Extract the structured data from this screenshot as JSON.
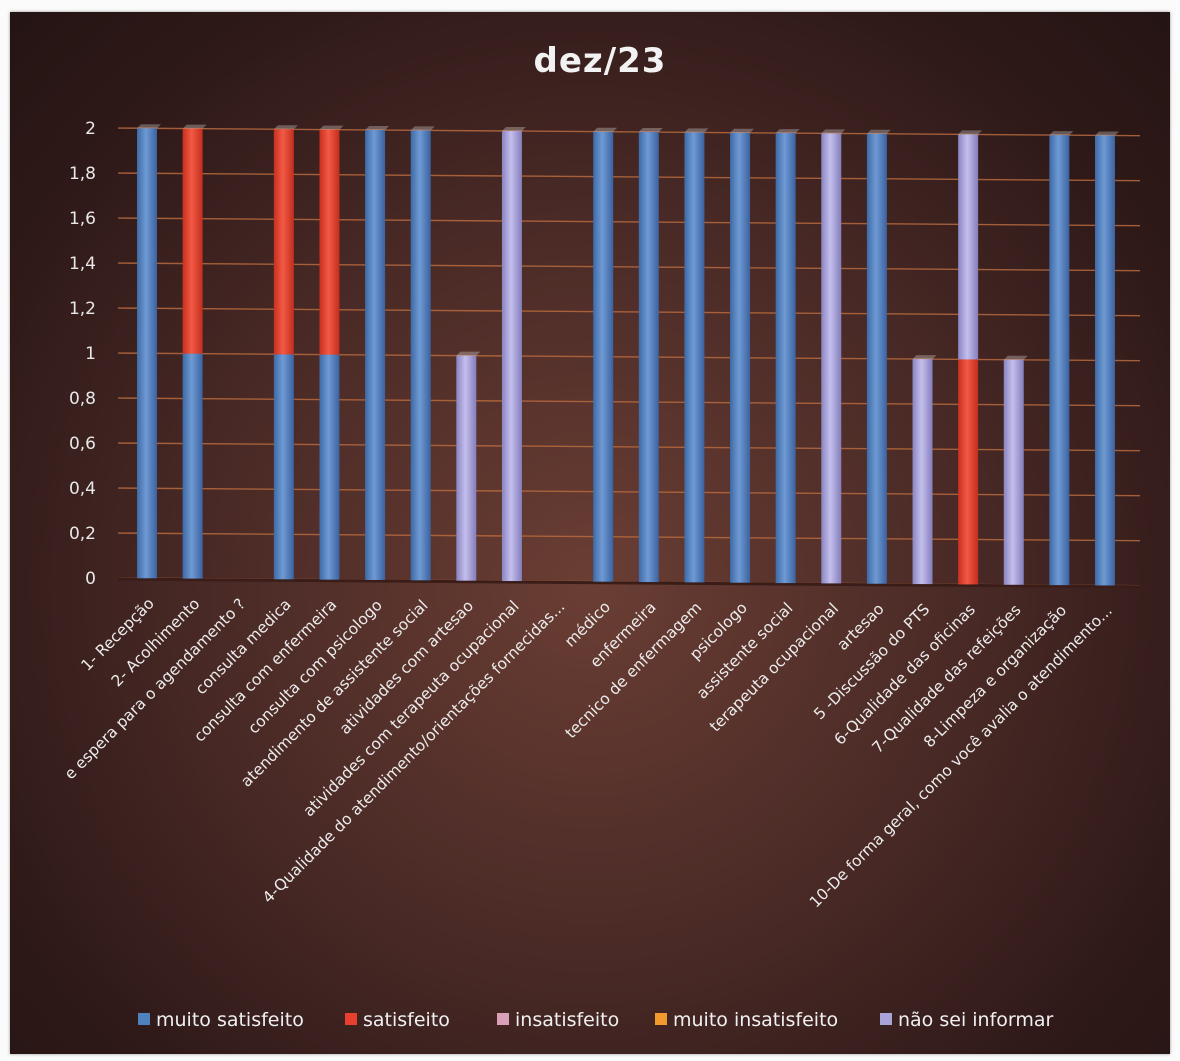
{
  "chart_data": {
    "type": "bar",
    "stacked": true,
    "title": "dez/23",
    "xlabel": "",
    "ylabel": "",
    "ylim": [
      0,
      2
    ],
    "yticks": [
      "0",
      "0,2",
      "0,4",
      "0,6",
      "0,8",
      "1",
      "1,2",
      "1,4",
      "1,6",
      "1,8",
      "2"
    ],
    "grid": true,
    "legend_position": "bottom",
    "categories": [
      "1- Recepção",
      "2- Acolhimento",
      "e espera para o agendamento ?",
      "consulta medica",
      "consulta com enfermeira",
      "consulta com psicologo",
      "atendimento de assistente social",
      "atividades com artesao",
      "atividades com terapeuta ocupacional",
      "4-Qualidade do atendimento/orientações fornecidas...",
      "médico",
      "enfermeira",
      "tecnico de enfermagem",
      "psicologo",
      "assistente social",
      "terapeuta ocupacional",
      "artesao",
      "5 -Discussão do PTS",
      "6-Qualidade das oficinas",
      "7-Qualidade das refeições",
      "8-Limpeza e organização",
      "10-De forma geral, como você avalia o atendimento..."
    ],
    "series": [
      {
        "name": "muito satisfeito",
        "color": "#4f81bd",
        "values": [
          2,
          1,
          0,
          1,
          1,
          2,
          2,
          0,
          0,
          0,
          2,
          2,
          2,
          2,
          2,
          0,
          2,
          0,
          0,
          0,
          2,
          2
        ]
      },
      {
        "name": "satisfeito",
        "color": "#e8402e",
        "values": [
          0,
          1,
          0,
          1,
          1,
          0,
          0,
          0,
          0,
          0,
          0,
          0,
          0,
          0,
          0,
          0,
          0,
          0,
          1,
          0,
          0,
          0
        ]
      },
      {
        "name": "insatisfeito",
        "color": "#d9a0b8",
        "values": [
          0,
          0,
          0,
          0,
          0,
          0,
          0,
          0,
          0,
          0,
          0,
          0,
          0,
          0,
          0,
          0,
          0,
          0,
          0,
          0,
          0,
          0
        ]
      },
      {
        "name": "muito insatisfeito",
        "color": "#f39a2e",
        "values": [
          0,
          0,
          0,
          0,
          0,
          0,
          0,
          0,
          0,
          0,
          0,
          0,
          0,
          0,
          0,
          0,
          0,
          0,
          0,
          0,
          0,
          0
        ]
      },
      {
        "name": "não sei informar",
        "color": "#a9a3d8",
        "values": [
          0,
          0,
          0,
          0,
          0,
          0,
          0,
          1,
          2,
          0,
          0,
          0,
          0,
          0,
          0,
          2,
          0,
          1,
          1,
          1,
          0,
          0
        ]
      }
    ]
  }
}
